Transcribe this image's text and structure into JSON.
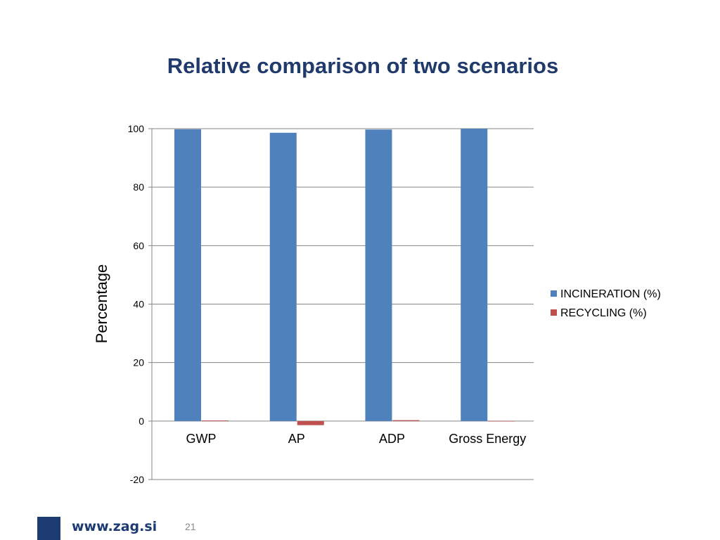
{
  "slide": {
    "title": "Relative comparison of two scenarios",
    "footer_url": "www.zag.si",
    "page_number": "21"
  },
  "chart_data": {
    "type": "bar",
    "title": "",
    "xlabel": "",
    "ylabel": "Percentage",
    "ylim": [
      -20,
      100
    ],
    "yticks": [
      -20,
      0,
      20,
      40,
      60,
      80,
      100
    ],
    "grid": true,
    "legend_position": "right",
    "categories": [
      "GWP",
      "AP",
      "ADP",
      "Gross Energy"
    ],
    "series": [
      {
        "name": "INCINERATION (%)",
        "color": "#4f81bd",
        "values": [
          99.8,
          98.6,
          99.7,
          100
        ]
      },
      {
        "name": "RECYCLING (%)",
        "color": "#c0504d",
        "values": [
          0.2,
          -1.4,
          0.3,
          0
        ]
      }
    ]
  }
}
